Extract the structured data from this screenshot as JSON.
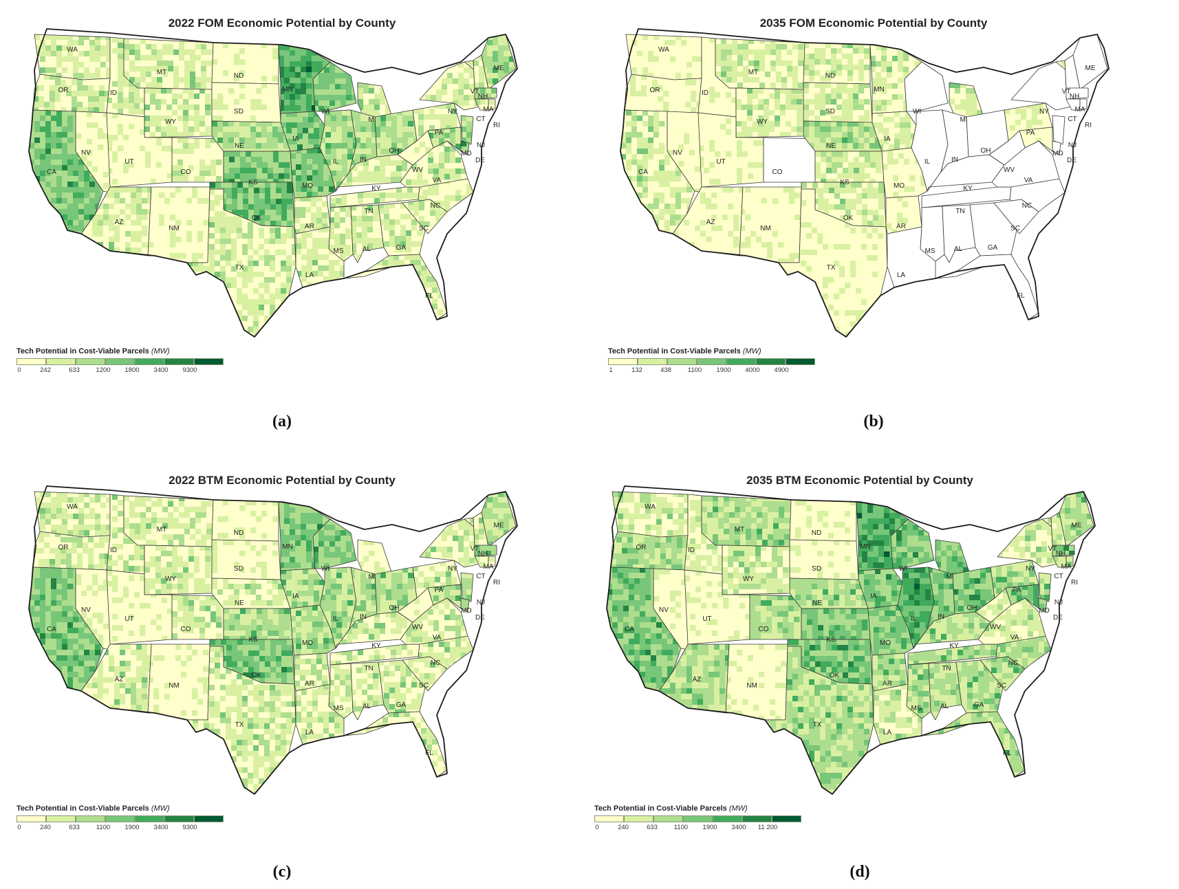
{
  "palette": [
    "#ffffcc",
    "#d9f0a3",
    "#addd8e",
    "#78c679",
    "#41ab5d",
    "#238443",
    "#005a32"
  ],
  "legend_title": "Tech Potential in Cost-Viable Parcels",
  "legend_unit": "(MW)",
  "state_labels": [
    "WA",
    "OR",
    "CA",
    "ID",
    "NV",
    "MT",
    "WY",
    "UT",
    "AZ",
    "CO",
    "NM",
    "ND",
    "SD",
    "NE",
    "KS",
    "OK",
    "TX",
    "MN",
    "IA",
    "MO",
    "AR",
    "LA",
    "WI",
    "IL",
    "MI",
    "IN",
    "OH",
    "KY",
    "TN",
    "MS",
    "AL",
    "GA",
    "FL",
    "SC",
    "NC",
    "VA",
    "WV",
    "PA",
    "NY",
    "VT",
    "NH",
    "ME",
    "MA",
    "CT",
    "RI",
    "NJ",
    "DE",
    "MD"
  ],
  "panels": [
    {
      "id": "a",
      "title": "2022 FOM Economic Potential by County",
      "caption": "(a)",
      "legend_ticks": [
        "0",
        "242",
        "633",
        "1200",
        "1800",
        "3400",
        "9300"
      ],
      "fill_levels": {
        "WA": 1,
        "OR": 1,
        "CA": 3,
        "ID": 1,
        "NV": 0,
        "MT": 1,
        "WY": 1,
        "UT": 0,
        "AZ": 1,
        "CO": 1,
        "NM": 0,
        "ND": 0,
        "SD": 0,
        "NE": 2,
        "KS": 3,
        "OK": 3,
        "TX": 1,
        "MN": 4,
        "IA": 3,
        "MO": 3,
        "AR": 1,
        "LA": 1,
        "WI": 3,
        "IL": 2,
        "MI": 1,
        "IN": 2,
        "OH": 2,
        "KY": 1,
        "TN": 1,
        "MS": 1,
        "AL": 1,
        "GA": 1,
        "FL": 1,
        "SC": 1,
        "NC": 1,
        "VA": 1,
        "WV": 0,
        "PA": 1,
        "NY": 1,
        "VT": 1,
        "NH": 1,
        "ME": 2,
        "MA": 2,
        "CT": 1,
        "RI": 1,
        "NJ": 2,
        "DE": 3,
        "MD": 2
      }
    },
    {
      "id": "b",
      "title": "2035 FOM Economic Potential by County",
      "caption": "(b)",
      "legend_ticks": [
        "1",
        "132",
        "438",
        "1100",
        "1900",
        "4000",
        "4900"
      ],
      "fill_levels": {
        "WA": 0,
        "OR": 0,
        "CA": 1,
        "ID": 0,
        "NV": 0,
        "MT": 1,
        "WY": 1,
        "UT": 0,
        "AZ": 0,
        "CO": -1,
        "NM": 0,
        "ND": 1,
        "SD": 1,
        "NE": 2,
        "KS": 1,
        "OK": 1,
        "TX": 0,
        "MN": 1,
        "IA": 1,
        "MO": 0,
        "AR": 0,
        "LA": -1,
        "WI": -1,
        "IL": -1,
        "MI": 1,
        "IN": -1,
        "OH": -1,
        "KY": -1,
        "TN": -1,
        "MS": -1,
        "AL": -1,
        "GA": -1,
        "FL": -1,
        "SC": -1,
        "NC": -1,
        "VA": -1,
        "WV": -1,
        "PA": 0,
        "NY": -1,
        "VT": 0,
        "NH": -1,
        "ME": -1,
        "MA": -1,
        "CT": -1,
        "RI": -1,
        "NJ": -1,
        "DE": -1,
        "MD": 0
      }
    },
    {
      "id": "c",
      "title": "2022 BTM Economic Potential by County",
      "caption": "(c)",
      "legend_ticks": [
        "0",
        "240",
        "633",
        "1100",
        "1900",
        "3400",
        "9300"
      ],
      "fill_levels": {
        "WA": 1,
        "OR": 1,
        "CA": 3,
        "ID": 1,
        "NV": 0,
        "MT": 1,
        "WY": 1,
        "UT": 0,
        "AZ": 1,
        "CO": 1,
        "NM": 0,
        "ND": 0,
        "SD": 0,
        "NE": 1,
        "KS": 2,
        "OK": 3,
        "TX": 1,
        "MN": 3,
        "IA": 2,
        "MO": 2,
        "AR": 1,
        "LA": 1,
        "WI": 3,
        "IL": 2,
        "MI": 0,
        "IN": 2,
        "OH": 2,
        "KY": 1,
        "TN": 1,
        "MS": 1,
        "AL": 1,
        "GA": 1,
        "FL": 1,
        "SC": 1,
        "NC": 1,
        "VA": 1,
        "WV": 0,
        "PA": 1,
        "NY": 1,
        "VT": 1,
        "NH": 1,
        "ME": 2,
        "MA": 2,
        "CT": 1,
        "RI": 1,
        "NJ": 2,
        "DE": 3,
        "MD": 2
      }
    },
    {
      "id": "d",
      "title": "2035 BTM Economic Potential by County",
      "caption": "(d)",
      "legend_ticks": [
        "0",
        "240",
        "633",
        "1100",
        "1900",
        "3400",
        "11 200"
      ],
      "fill_levels": {
        "WA": 1,
        "OR": 2,
        "CA": 3,
        "ID": 1,
        "NV": 0,
        "MT": 2,
        "WY": 1,
        "UT": 0,
        "AZ": 2,
        "CO": 2,
        "NM": 0,
        "ND": 0,
        "SD": 0,
        "NE": 2,
        "KS": 3,
        "OK": 3,
        "TX": 2,
        "MN": 4,
        "IA": 3,
        "MO": 3,
        "AR": 2,
        "LA": 1,
        "WI": 3,
        "IL": 4,
        "MI": 3,
        "IN": 3,
        "OH": 3,
        "KY": 2,
        "TN": 2,
        "MS": 2,
        "AL": 2,
        "GA": 2,
        "FL": 2,
        "SC": 2,
        "NC": 2,
        "VA": 1,
        "WV": 1,
        "PA": 2,
        "NY": 1,
        "VT": 1,
        "NH": 1,
        "ME": 2,
        "MA": 3,
        "CT": 2,
        "RI": 2,
        "NJ": 2,
        "DE": 3,
        "MD": 3
      }
    }
  ]
}
